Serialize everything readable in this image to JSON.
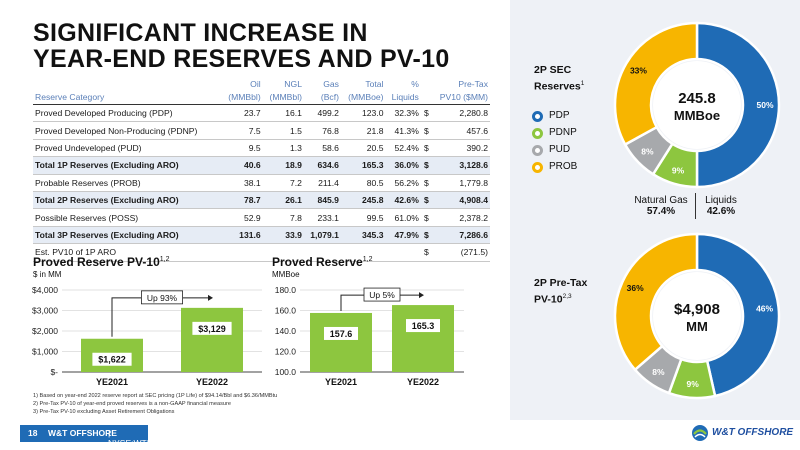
{
  "title_line1": "SIGNIFICANT INCREASE IN",
  "title_line2": "YEAR-END RESERVES AND PV-10",
  "table": {
    "header1": [
      "",
      "Oil",
      "NGL",
      "Gas",
      "Total",
      "%",
      "",
      "Pre-Tax"
    ],
    "header2": [
      "Reserve Category",
      "(MMBbl)",
      "(MMBbl)",
      "(Bcf)",
      "(MMBoe)",
      "Liquids",
      "",
      "PV10 ($MM)"
    ],
    "rows": [
      {
        "cells": [
          "Proved Developed Producing (PDP)",
          "23.7",
          "16.1",
          "499.2",
          "123.0",
          "32.3%",
          "$",
          "2,280.8"
        ],
        "bold": false,
        "shade": false
      },
      {
        "cells": [
          "Proved Developed Non-Producing (PDNP)",
          "7.5",
          "1.5",
          "76.8",
          "21.8",
          "41.3%",
          "$",
          "457.6"
        ],
        "bold": false,
        "shade": false
      },
      {
        "cells": [
          "Proved Undeveloped (PUD)",
          "9.5",
          "1.3",
          "58.6",
          "20.5",
          "52.4%",
          "$",
          "390.2"
        ],
        "bold": false,
        "shade": false
      },
      {
        "cells": [
          "Total 1P Reserves (Excluding ARO)",
          "40.6",
          "18.9",
          "634.6",
          "165.3",
          "36.0%",
          "$",
          "3,128.6"
        ],
        "bold": true,
        "shade": true
      },
      {
        "cells": [
          "Probable Reserves (PROB)",
          "38.1",
          "7.2",
          "211.4",
          "80.5",
          "56.2%",
          "$",
          "1,779.8"
        ],
        "bold": false,
        "shade": false
      },
      {
        "cells": [
          "Total 2P Reserves (Excluding ARO)",
          "78.7",
          "26.1",
          "845.9",
          "245.8",
          "42.6%",
          "$",
          "4,908.4"
        ],
        "bold": true,
        "shade": true
      },
      {
        "cells": [
          "Possible Reserves (POSS)",
          "52.9",
          "7.8",
          "233.1",
          "99.5",
          "61.0%",
          "$",
          "2,378.2"
        ],
        "bold": false,
        "shade": false
      },
      {
        "cells": [
          "Total 3P Reserves (Excluding ARO)",
          "131.6",
          "33.9",
          "1,079.1",
          "345.3",
          "47.9%",
          "$",
          "7,286.6"
        ],
        "bold": true,
        "shade": true
      },
      {
        "cells": [
          "Est. PV10 of 1P ARO",
          "",
          "",
          "",
          "",
          "",
          "$",
          "(271.5)"
        ],
        "bold": false,
        "shade": false
      }
    ]
  },
  "pv10_chart": {
    "title": "Proved Reserve PV-10",
    "title_sup": "1,2",
    "subtitle": "$ in MM",
    "callout": "Up 93%"
  },
  "reserve_chart": {
    "title": "Proved Reserve",
    "title_sup": "1,2",
    "subtitle": "MMBoe",
    "callout": "Up 5%"
  },
  "chart_data": [
    {
      "type": "bar",
      "categories": [
        "YE2021",
        "YE2022"
      ],
      "values": [
        1622,
        3129
      ],
      "value_labels": [
        "$1,622",
        "$3,129"
      ],
      "yticks": [
        "$4,000",
        "$3,000",
        "$2,000",
        "$1,000",
        "$-"
      ],
      "ylim": [
        0,
        4000
      ],
      "color": "#8dc63f"
    },
    {
      "type": "bar",
      "categories": [
        "YE2021",
        "YE2022"
      ],
      "values": [
        157.6,
        165.3
      ],
      "value_labels": [
        "157.6",
        "165.3"
      ],
      "yticks": [
        "180.0",
        "160.0",
        "140.0",
        "120.0",
        "100.0"
      ],
      "ylim": [
        100,
        180
      ],
      "color": "#8dc63f"
    },
    {
      "type": "pie",
      "labels": [
        "PDP",
        "PDNP",
        "PUD",
        "PROB"
      ],
      "values": [
        50,
        9,
        8,
        33
      ],
      "slice_labels": [
        "50%",
        "9%",
        "8%",
        "33%"
      ],
      "colors": [
        "#1f6bb5",
        "#8dc63f",
        "#a7a9ac",
        "#f7b500"
      ],
      "center_line1": "245.8",
      "center_line2": "MMBoe"
    },
    {
      "type": "pie",
      "labels": [
        "PDP",
        "PDNP",
        "PUD",
        "PROB"
      ],
      "values": [
        46,
        9,
        8,
        36
      ],
      "slice_labels": [
        "46%",
        "9%",
        "8%",
        "36%"
      ],
      "colors": [
        "#1f6bb5",
        "#8dc63f",
        "#a7a9ac",
        "#f7b500"
      ],
      "center_line1": "$4,908",
      "center_line2": "MM"
    }
  ],
  "right": {
    "label1_line1": "2P SEC",
    "label1_line2": "Reserves",
    "label1_sup": "1",
    "legend": [
      {
        "label": "PDP",
        "color": "#1f6bb5"
      },
      {
        "label": "PDNP",
        "color": "#8dc63f"
      },
      {
        "label": "PUD",
        "color": "#a7a9ac"
      },
      {
        "label": "PROB",
        "color": "#f7b500"
      }
    ],
    "gas_label": "Natural Gas",
    "gas_value": "57.4%",
    "liq_label": "Liquids",
    "liq_value": "42.6%",
    "label2_line1": "2P Pre-Tax",
    "label2_line2": "PV-10",
    "label2_sup": "2,3"
  },
  "notes": [
    "1) Based on year-end 2022 reserve report at SEC pricing (1P Life) of $94.14/Bbl and $6.36/MMBtu",
    "2) Pre-Tax PV-10 of year-end proved reserves is a non-GAAP financial measure",
    "3) Pre-Tax PV-10 excluding Asset Retirement Obligations"
  ],
  "footer": {
    "page": "18",
    "company": "W&T OFFSHORE",
    "ticker": "| NYSE:WTI",
    "logo": "W&T OFFSHORE"
  }
}
